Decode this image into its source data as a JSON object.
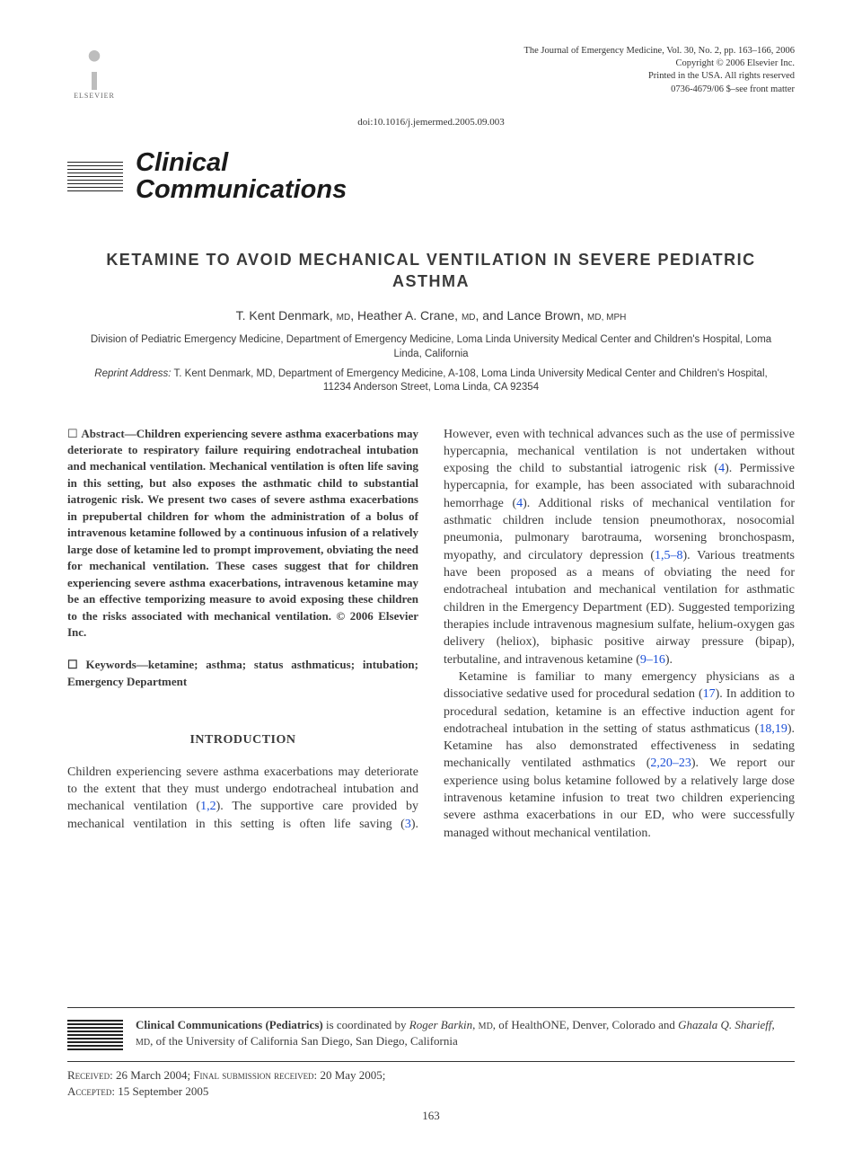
{
  "publisher": {
    "name": "ELSEVIER"
  },
  "journal_meta": {
    "line1": "The Journal of Emergency Medicine, Vol. 30, No. 2, pp. 163–166, 2006",
    "line2": "Copyright © 2006 Elsevier Inc.",
    "line3": "Printed in the USA. All rights reserved",
    "line4": "0736-4679/06 $–see front matter"
  },
  "doi": "doi:10.1016/j.jemermed.2005.09.003",
  "banner": {
    "line1": "Clinical",
    "line2": "Communications"
  },
  "article": {
    "title": "KETAMINE TO AVOID MECHANICAL VENTILATION IN SEVERE PEDIATRIC ASTHMA",
    "authors_html": "T. Kent Denmark, <span class=\"deg\">MD</span>, Heather A. Crane, <span class=\"deg\">MD</span>, and Lance Brown, <span class=\"deg\">MD, MPH</span>",
    "affiliation": "Division of Pediatric Emergency Medicine, Department of Emergency Medicine, Loma Linda University Medical Center and Children's Hospital, Loma Linda, California",
    "reprint_label": "Reprint Address:",
    "reprint": "T. Kent Denmark, MD, Department of Emergency Medicine, A-108, Loma Linda University Medical Center and Children's Hospital, 11234 Anderson Street, Loma Linda, CA 92354"
  },
  "abstract": {
    "label": "Abstract—",
    "text": "Children experiencing severe asthma exacerbations may deteriorate to respiratory failure requiring endotracheal intubation and mechanical ventilation. Mechanical ventilation is often life saving in this setting, but also exposes the asthmatic child to substantial iatrogenic risk. We present two cases of severe asthma exacerbations in prepubertal children for whom the administration of a bolus of intravenous ketamine followed by a continuous infusion of a relatively large dose of ketamine led to prompt improvement, obviating the need for mechanical ventilation. These cases suggest that for children experiencing severe asthma exacerbations, intravenous ketamine may be an effective temporizing measure to avoid exposing these children to the risks associated with mechanical ventilation.   © 2006 Elsevier Inc."
  },
  "keywords": {
    "label": "Keywords—",
    "text": "ketamine; asthma; status asthmaticus; intubation; Emergency Department"
  },
  "intro": {
    "heading": "INTRODUCTION",
    "p1_pre": "Children experiencing severe asthma exacerbations may deteriorate to the extent that they must undergo endotracheal intubation and mechanical ventilation (",
    "p1_ref1": "1,2",
    "p1_mid1": "). The supportive care provided by mechanical ventilation in this setting is often life saving (",
    "p1_ref2": "3",
    "p1_mid2": "). However, even with technical advances such as the use of permissive hypercapnia, mechanical ventilation is not undertaken without exposing the child to substantial iatrogenic risk (",
    "p1_ref3": "4",
    "p1_mid3": "). Permissive hypercapnia, for example, has been associated with subarachnoid hemorrhage (",
    "p1_ref4": "4",
    "p1_mid4": "). Additional risks of mechanical ventilation for asthmatic children include tension pneumothorax, nosocomial pneumonia, pulmonary barotrauma, worsening bronchospasm, myopathy, and circulatory depression (",
    "p1_ref5": "1,5–8",
    "p1_mid5": "). Various treatments have been proposed as a means of obviating the need for endotracheal intubation and mechanical ventilation for asthmatic children in the Emergency Department (ED). Suggested temporizing therapies include intravenous magnesium sulfate, helium-oxygen gas delivery (heliox), biphasic positive airway pressure (bipap), terbutaline, and intravenous ketamine (",
    "p1_ref6": "9–16",
    "p1_post": ").",
    "p2_pre": "Ketamine is familiar to many emergency physicians as a dissociative sedative used for procedural sedation (",
    "p2_ref1": "17",
    "p2_mid1": "). In addition to procedural sedation, ketamine is an effective induction agent for endotracheal intubation in the setting of status asthmaticus (",
    "p2_ref2": "18,19",
    "p2_mid2": "). Ketamine has also demonstrated effectiveness in sedating mechanically ventilated asthmatics (",
    "p2_ref3": "2,20–23",
    "p2_mid3": "). We report our experience using bolus ketamine followed by a relatively large dose intravenous ketamine infusion to treat two children experiencing severe asthma exacerbations in our ED, who were successfully managed without mechanical ventilation."
  },
  "coord": {
    "label": "Clinical Communications (Pediatrics)",
    "pre": " is coordinated by ",
    "ed1": "Roger Barkin",
    "ed1_deg": "MD",
    "ed1_aff": ", of HealthONE, Denver, Colorado and ",
    "ed2": "Ghazala Q. Sharieff",
    "ed2_deg": "MD",
    "ed2_aff": ", of the University of California San Diego, San Diego, California"
  },
  "dates": {
    "received_lbl": "Received:",
    "received": " 26 March 2004; ",
    "final_lbl": "Final submission received:",
    "final": " 20 May 2005;",
    "accepted_lbl": "Accepted:",
    "accepted": " 15 September 2005"
  },
  "page_number": "163",
  "colors": {
    "link": "#1a4fd6",
    "text": "#3a3a3a",
    "rule": "#333333",
    "background": "#ffffff"
  }
}
